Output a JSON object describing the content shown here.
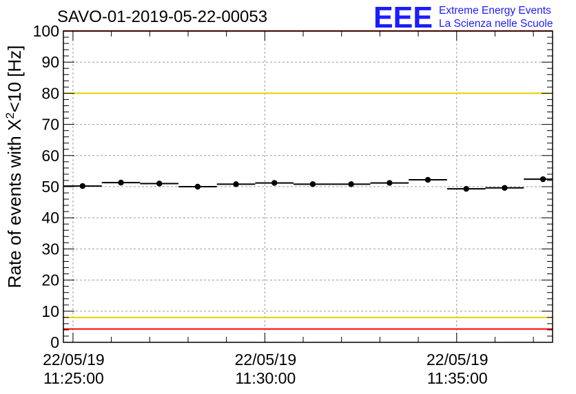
{
  "header": {
    "run_id": "SAVO-01-2019-05-22-00053"
  },
  "logo": {
    "mark": "EEE",
    "line1": "Extreme Energy Events",
    "line2": "La Scienza nelle Scuole",
    "color": "#1c1cff"
  },
  "chart_data": {
    "type": "scatter",
    "title": "SAVO-01-2019-05-22-00053",
    "ylabel_prefix": "Rate of events with X",
    "ylabel_sup": "2",
    "ylabel_suffix": "<10 [Hz]",
    "xlabel": "",
    "ylim": [
      0,
      100
    ],
    "yticks": [
      0,
      10,
      20,
      30,
      40,
      50,
      60,
      70,
      80,
      90,
      100
    ],
    "ytick_labels": [
      "0",
      "10",
      "20",
      "30",
      "40",
      "50",
      "60",
      "70",
      "80",
      "90",
      "100"
    ],
    "xlim_minutes": [
      -0.25,
      12.5
    ],
    "xticks_minutes": [
      0,
      5,
      10
    ],
    "xtick_labels": [
      {
        "date": "22/05/19",
        "time": "11:25:00"
      },
      {
        "date": "22/05/19",
        "time": "11:30:00"
      },
      {
        "date": "22/05/19",
        "time": "11:35:00"
      }
    ],
    "grid": true,
    "bin_width_minutes": 1,
    "series": [
      {
        "name": "rate",
        "x_minutes": [
          0.25,
          1.25,
          2.25,
          3.25,
          4.25,
          5.25,
          6.25,
          7.25,
          8.25,
          9.25,
          10.25,
          11.25,
          12.25
        ],
        "values": [
          50.2,
          51.3,
          51.0,
          50.0,
          50.8,
          51.2,
          50.8,
          50.8,
          51.2,
          52.2,
          49.3,
          49.6,
          52.4
        ]
      }
    ],
    "reference_lines": [
      {
        "y": 100,
        "color": "#ff0000"
      },
      {
        "y": 80,
        "color": "#e8d000"
      },
      {
        "y": 8,
        "color": "#e8d000"
      },
      {
        "y": 4.3,
        "color": "#ff0000"
      }
    ]
  }
}
